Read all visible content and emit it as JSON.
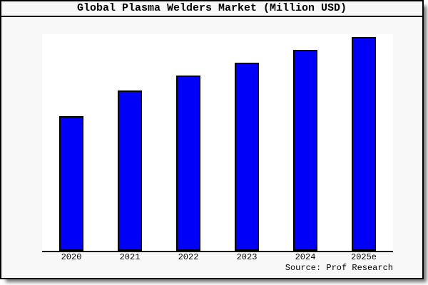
{
  "chart": {
    "title": "Global Plasma Welders Market (Million USD)",
    "source": "Source: Prof Research",
    "colors": {
      "bar_fill": "#0000fa",
      "bar_border": "#000000",
      "figure_bg": "#f8f8f8",
      "plot_bg": "#ffffff",
      "axis_line": "#000000",
      "text": "#000000"
    }
  },
  "chart_data": {
    "type": "bar",
    "title": "Global Plasma Welders Market (Million USD)",
    "categories": [
      "2020",
      "2021",
      "2022",
      "2023",
      "2024",
      "2025e"
    ],
    "values": [
      63,
      75,
      82,
      88,
      94,
      100
    ],
    "xlabel": "",
    "ylabel": "",
    "ylim": [
      0,
      100
    ],
    "grid": false,
    "legend": null,
    "y_axis_visible": false,
    "note": "No y-axis scale or value labels shown in the image; values are relative bar heights with 2025e normalized to 100.",
    "annotations": [
      "Source: Prof Research"
    ]
  }
}
